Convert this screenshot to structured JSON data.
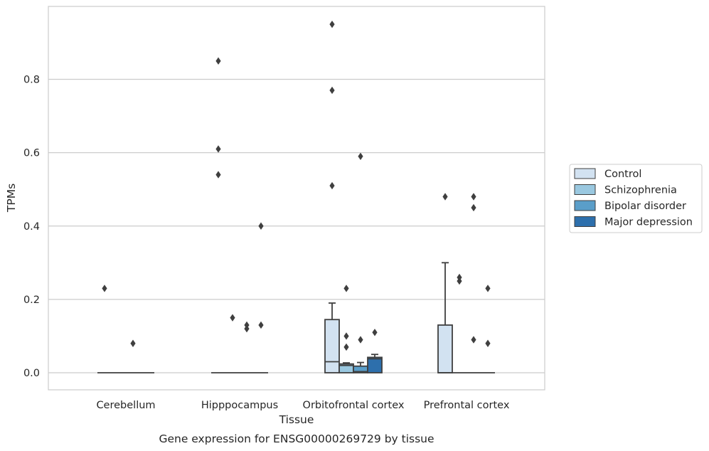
{
  "chart_data": {
    "type": "box",
    "title": "",
    "caption": "Gene expression for ENSG00000269729 by tissue",
    "xlabel": "Tissue",
    "ylabel": "TPMs",
    "ylim": [
      -0.045,
      0.995
    ],
    "yticks": [
      0.0,
      0.2,
      0.4,
      0.6,
      0.8
    ],
    "ytick_labels": [
      "0.0",
      "0.2",
      "0.4",
      "0.6",
      "0.8"
    ],
    "grid": "horizontal",
    "legend_position": "right",
    "categories": [
      "Cerebellum",
      "Hipppocampus",
      "Orbitofrontal cortex",
      "Prefrontal cortex"
    ],
    "series": [
      {
        "name": "Control",
        "color": "#d2e2f1",
        "boxes": [
          {
            "min": 0,
            "q1": 0,
            "median": 0,
            "q3": 0,
            "max": 0,
            "outliers": [
              0.23
            ]
          },
          {
            "min": 0,
            "q1": 0,
            "median": 0,
            "q3": 0,
            "max": 0,
            "outliers": [
              0.85,
              0.61,
              0.54
            ]
          },
          {
            "min": 0,
            "q1": 0,
            "median": 0.03,
            "q3": 0.145,
            "max": 0.19,
            "outliers": [
              0.95,
              0.77,
              0.51
            ]
          },
          {
            "min": 0,
            "q1": 0,
            "median": 0,
            "q3": 0.13,
            "max": 0.3,
            "outliers": [
              0.48
            ]
          }
        ]
      },
      {
        "name": "Schizophrenia",
        "color": "#9ac8e0",
        "boxes": [
          {
            "min": 0,
            "q1": 0,
            "median": 0,
            "q3": 0,
            "max": 0,
            "outliers": []
          },
          {
            "min": 0,
            "q1": 0,
            "median": 0,
            "q3": 0,
            "max": 0,
            "outliers": [
              0.15
            ]
          },
          {
            "min": 0,
            "q1": 0,
            "median": 0.02,
            "q3": 0.024,
            "max": 0.027,
            "outliers": [
              0.23,
              0.1,
              0.07
            ]
          },
          {
            "min": 0,
            "q1": 0,
            "median": 0,
            "q3": 0,
            "max": 0,
            "outliers": [
              0.26,
              0.25
            ]
          }
        ]
      },
      {
        "name": "Bipolar disorder",
        "color": "#5a9ec9",
        "boxes": [
          {
            "min": 0,
            "q1": 0,
            "median": 0,
            "q3": 0,
            "max": 0,
            "outliers": [
              0.08
            ]
          },
          {
            "min": 0,
            "q1": 0,
            "median": 0,
            "q3": 0,
            "max": 0,
            "outliers": [
              0.13,
              0.12
            ]
          },
          {
            "min": 0,
            "q1": 0,
            "median": 0.003,
            "q3": 0.018,
            "max": 0.028,
            "outliers": [
              0.59,
              0.09
            ]
          },
          {
            "min": 0,
            "q1": 0,
            "median": 0,
            "q3": 0,
            "max": 0,
            "outliers": [
              0.48,
              0.45,
              0.09
            ]
          }
        ]
      },
      {
        "name": "Major depression",
        "color": "#2d6fac",
        "boxes": [
          {
            "min": 0,
            "q1": 0,
            "median": 0,
            "q3": 0,
            "max": 0,
            "outliers": []
          },
          {
            "min": 0,
            "q1": 0,
            "median": 0,
            "q3": 0,
            "max": 0,
            "outliers": [
              0.4,
              0.13
            ]
          },
          {
            "min": 0,
            "q1": 0,
            "median": 0.038,
            "q3": 0.042,
            "max": 0.05,
            "outliers": [
              0.11
            ]
          },
          {
            "min": 0,
            "q1": 0,
            "median": 0,
            "q3": 0,
            "max": 0,
            "outliers": [
              0.23,
              0.08
            ]
          }
        ]
      }
    ],
    "colors": {
      "line": "#3f3f3f",
      "grid": "#cccccc",
      "frame": "#cccccc"
    }
  }
}
